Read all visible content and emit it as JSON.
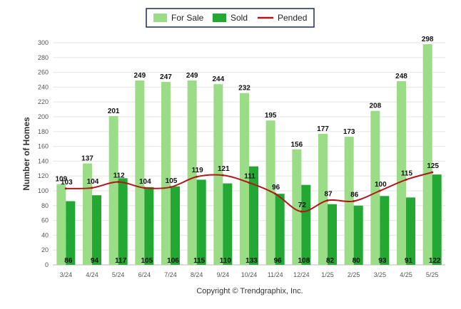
{
  "chart_data": {
    "type": "bar",
    "title": "",
    "ylabel": "Number of Homes",
    "xlabel": "",
    "ylim": [
      0,
      300
    ],
    "yticks": [
      0,
      20,
      40,
      60,
      80,
      100,
      120,
      140,
      160,
      180,
      200,
      220,
      240,
      260,
      280,
      300
    ],
    "grid": true,
    "legend_position": "top-center",
    "categories": [
      "3/24",
      "4/24",
      "5/24",
      "6/24",
      "7/24",
      "8/24",
      "9/24",
      "10/24",
      "11/24",
      "12/24",
      "1/25",
      "2/25",
      "3/25",
      "4/25",
      "5/25"
    ],
    "series": [
      {
        "name": "For Sale",
        "type": "bar",
        "color": "#9bdc86",
        "values": [
          109,
          137,
          201,
          249,
          247,
          249,
          244,
          232,
          195,
          156,
          177,
          173,
          208,
          248,
          298
        ]
      },
      {
        "name": "Sold",
        "type": "bar",
        "color": "#22a833",
        "values": [
          86,
          94,
          117,
          105,
          106,
          115,
          110,
          133,
          96,
          108,
          82,
          80,
          93,
          91,
          122
        ]
      },
      {
        "name": "Pended",
        "type": "line",
        "color": "#b01818",
        "values": [
          103,
          104,
          112,
          104,
          105,
          119,
          121,
          111,
          96,
          72,
          87,
          86,
          100,
          115,
          125
        ]
      }
    ]
  },
  "footer": {
    "copyright": "Copyright © Trendgraphix, Inc."
  }
}
